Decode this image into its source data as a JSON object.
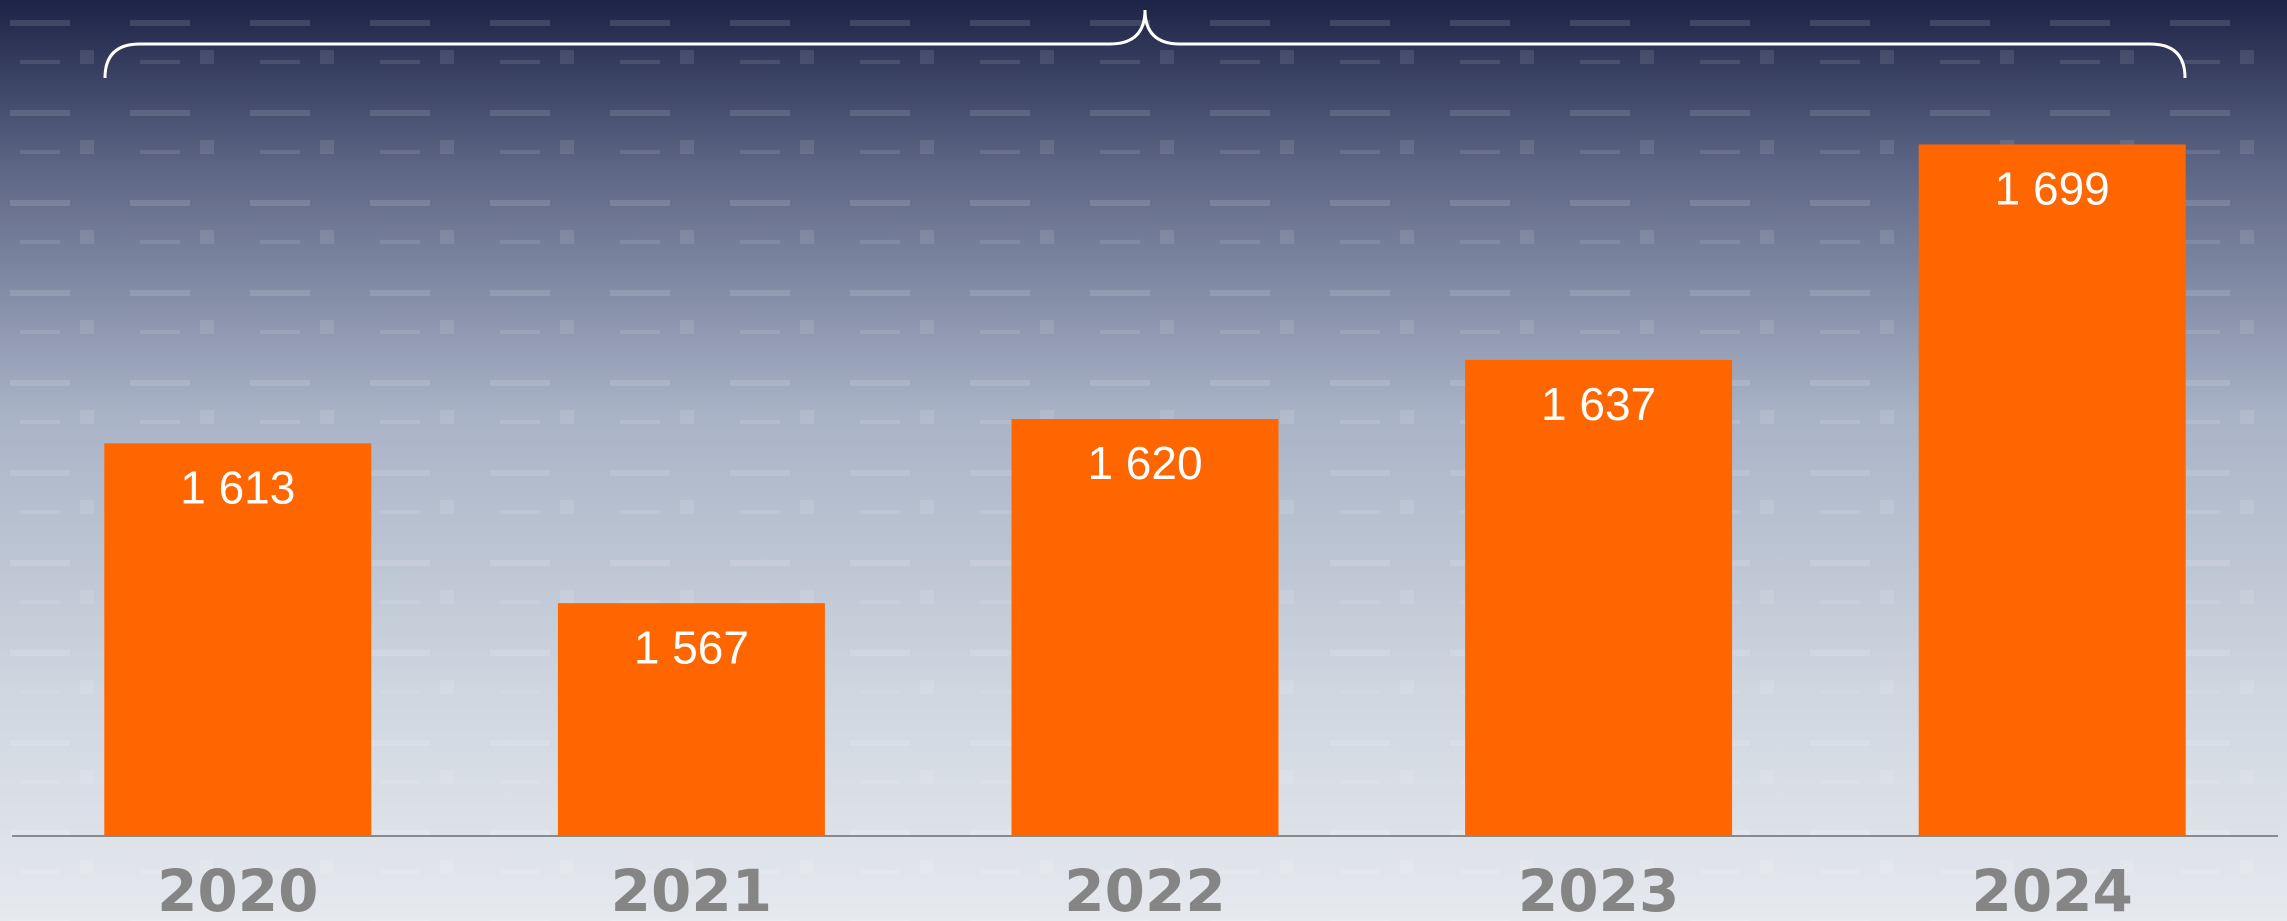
{
  "chart_data": {
    "type": "bar",
    "categories": [
      "2020",
      "2021",
      "2022",
      "2023",
      "2024"
    ],
    "values": [
      1613,
      1567,
      1620,
      1637,
      1699
    ],
    "value_labels": [
      "1 613",
      "1 567",
      "1 620",
      "1 637",
      "1 699"
    ],
    "color": "#ff6600",
    "ylim": [
      1500,
      1700
    ]
  }
}
